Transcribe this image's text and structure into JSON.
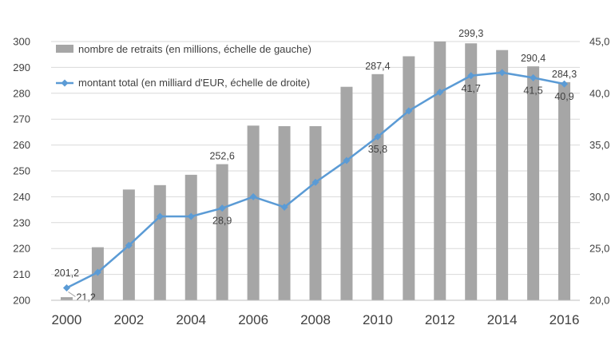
{
  "chart_data": {
    "type": "bar+line",
    "categories": [
      "2000",
      "2001",
      "2002",
      "2003",
      "2004",
      "2005",
      "2006",
      "2007",
      "2008",
      "2009",
      "2010",
      "2011",
      "2012",
      "2013",
      "2014",
      "2015",
      "2016"
    ],
    "x_tick_labels": [
      "2000",
      "2002",
      "2004",
      "2006",
      "2008",
      "2010",
      "2012",
      "2014",
      "2016"
    ],
    "series": [
      {
        "name": "nombre de retraits (en millions, échelle de gauche)",
        "type": "bar",
        "axis": "left",
        "color": "#a6a6a6",
        "values": [
          201.2,
          220.5,
          242.8,
          244.5,
          248.5,
          252.6,
          267.5,
          267.3,
          267.3,
          282.5,
          287.4,
          294.3,
          300.0,
          299.3,
          296.7,
          290.4,
          284.3
        ]
      },
      {
        "name": "montant total (en milliard d'EUR, échelle de droite)",
        "type": "line",
        "axis": "right",
        "color": "#5b9bd5",
        "values": [
          21.2,
          22.7,
          25.3,
          28.1,
          28.1,
          28.9,
          30.0,
          29.0,
          31.4,
          33.5,
          35.8,
          38.3,
          40.1,
          41.7,
          42.0,
          41.5,
          40.9
        ]
      }
    ],
    "bar_labels": [
      {
        "index": 0,
        "text": "201,2"
      },
      {
        "index": 5,
        "text": "252,6"
      },
      {
        "index": 10,
        "text": "287,4"
      },
      {
        "index": 13,
        "text": "299,3"
      },
      {
        "index": 15,
        "text": "290,4"
      },
      {
        "index": 16,
        "text": "284,3"
      }
    ],
    "line_labels": [
      {
        "index": 0,
        "text": "21,2"
      },
      {
        "index": 5,
        "text": "28,9"
      },
      {
        "index": 10,
        "text": "35,8"
      },
      {
        "index": 13,
        "text": "41,7"
      },
      {
        "index": 15,
        "text": "41,5"
      },
      {
        "index": 16,
        "text": "40,9"
      }
    ],
    "y_left": {
      "min": 200,
      "max": 300,
      "step": 10,
      "ticks": [
        "200",
        "210",
        "220",
        "230",
        "240",
        "250",
        "260",
        "270",
        "280",
        "290",
        "300"
      ]
    },
    "y_right": {
      "min": 20,
      "max": 45,
      "step": 5,
      "ticks": [
        "20,0",
        "25,0",
        "30,0",
        "35,0",
        "40,0",
        "45,0"
      ]
    },
    "legend": {
      "position": "top-left",
      "items": [
        "nombre de retraits (en millions, échelle de gauche)",
        "montant total (en milliard d'EUR, échelle de droite)"
      ]
    },
    "grid": true
  }
}
